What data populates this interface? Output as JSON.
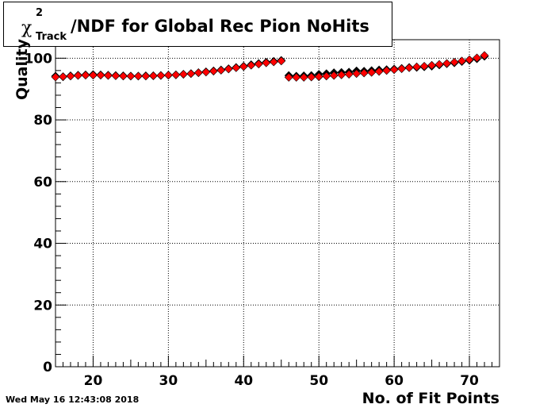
{
  "chart_data": {
    "type": "scatter",
    "title": {
      "prefix": "χ",
      "superscript": "2",
      "subscript": "Track",
      "text": "/NDF for Global Rec Pion NoHits"
    },
    "xlabel": "No. of Fit Points",
    "ylabel": "Quality",
    "xlim": [
      15,
      74
    ],
    "ylim": [
      0,
      106
    ],
    "x_ticks": [
      20,
      30,
      40,
      50,
      60,
      70
    ],
    "y_ticks": [
      0,
      20,
      40,
      60,
      80,
      100
    ],
    "grid": true,
    "legend": "none",
    "series": [
      {
        "color": "#000000",
        "x": [
          15,
          16,
          17,
          18,
          19,
          20,
          21,
          22,
          23,
          24,
          25,
          26,
          27,
          28,
          29,
          30,
          31,
          32,
          33,
          34,
          35,
          36,
          37,
          38,
          39,
          40,
          41,
          42,
          43,
          44,
          45,
          46,
          47,
          48,
          49,
          50,
          51,
          52,
          53,
          54,
          55,
          56,
          57,
          58,
          59,
          60,
          61,
          62,
          63,
          64,
          65,
          66,
          67,
          68,
          69,
          70,
          71,
          72
        ],
        "y": [
          94.2,
          94.0,
          94.3,
          94.5,
          94.6,
          94.7,
          94.6,
          94.5,
          94.4,
          94.3,
          94.2,
          94.2,
          94.3,
          94.3,
          94.4,
          94.5,
          94.6,
          94.8,
          95.0,
          95.3,
          95.6,
          95.9,
          96.2,
          96.6,
          97.0,
          97.4,
          97.9,
          98.3,
          98.7,
          99.0,
          99.3,
          94.4,
          94.2,
          94.3,
          94.4,
          94.8,
          95.0,
          95.3,
          95.4,
          95.5,
          95.9,
          95.8,
          96.0,
          96.2,
          96.3,
          96.5,
          96.7,
          97.0,
          97.0,
          97.2,
          97.4,
          97.8,
          98.2,
          98.5,
          98.9,
          99.3,
          99.8,
          100.6
        ]
      },
      {
        "color": "#ff0000",
        "x": [
          15,
          16,
          17,
          18,
          19,
          20,
          21,
          22,
          23,
          24,
          25,
          26,
          27,
          28,
          29,
          30,
          31,
          32,
          33,
          34,
          35,
          36,
          37,
          38,
          39,
          40,
          41,
          42,
          43,
          44,
          45,
          46,
          47,
          48,
          49,
          50,
          51,
          52,
          53,
          54,
          55,
          56,
          57,
          58,
          59,
          60,
          61,
          62,
          63,
          64,
          65,
          66,
          67,
          68,
          69,
          70,
          71,
          72
        ],
        "y": [
          93.9,
          94.0,
          94.2,
          94.4,
          94.5,
          94.5,
          94.5,
          94.4,
          94.3,
          94.2,
          94.2,
          94.2,
          94.2,
          94.3,
          94.4,
          94.5,
          94.6,
          94.8,
          95.0,
          95.3,
          95.5,
          95.8,
          96.1,
          96.5,
          96.9,
          97.3,
          97.7,
          98.1,
          98.5,
          98.8,
          99.1,
          93.8,
          93.8,
          93.8,
          93.9,
          94.0,
          94.2,
          94.4,
          94.6,
          94.8,
          95.0,
          95.2,
          95.4,
          95.7,
          96.0,
          96.3,
          96.6,
          96.9,
          97.2,
          97.4,
          97.7,
          98.0,
          98.3,
          98.7,
          99.1,
          99.5,
          100.1,
          100.9
        ]
      }
    ]
  },
  "footer": {
    "timestamp": "Wed May 16 12:43:08 2018"
  }
}
